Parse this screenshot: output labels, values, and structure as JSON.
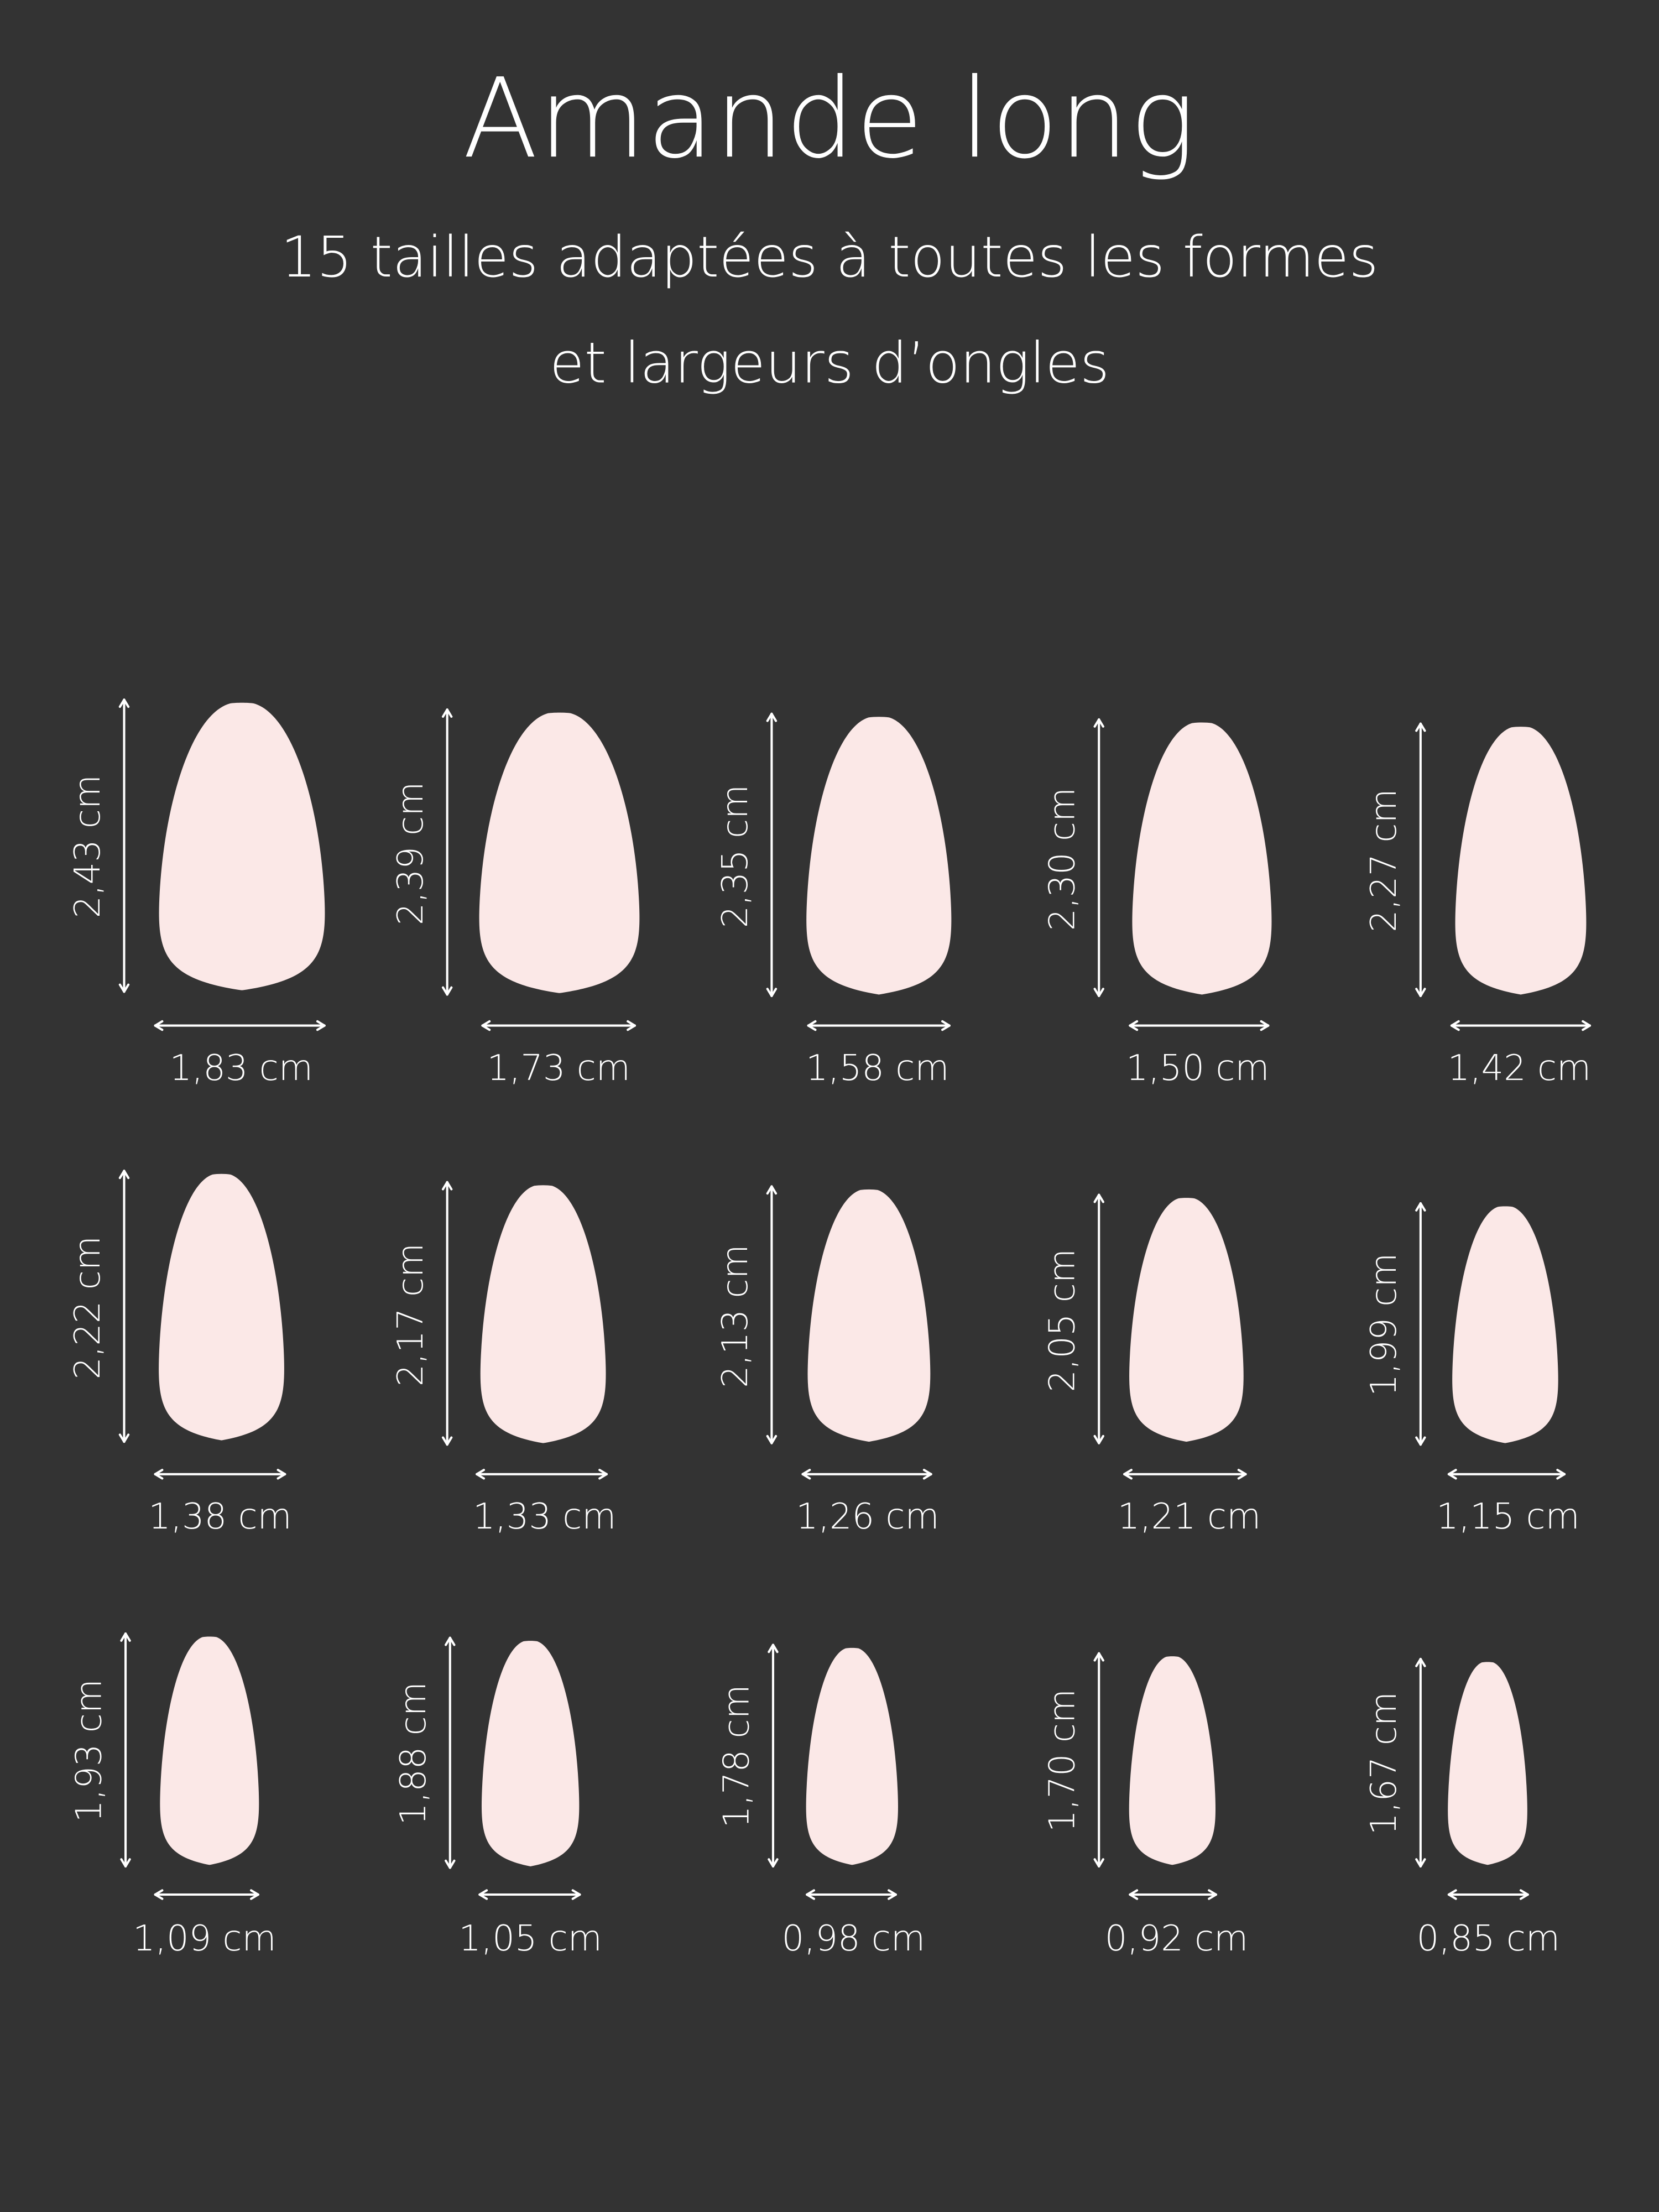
{
  "title": "Amande long",
  "subtitle": [
    "15 tailles adaptées à toutes les formes",
    "et largeurs d’ongles"
  ],
  "colors": {
    "background": "#333333",
    "nail": "#fbe8e7",
    "text": "#ffffff"
  },
  "nails": [
    {
      "length": "2,43 cm",
      "width": "1,83 cm"
    },
    {
      "length": "2,39 cm",
      "width": "1,73 cm"
    },
    {
      "length": "2,35 cm",
      "width": "1,58 cm"
    },
    {
      "length": "2,30 cm",
      "width": "1,50 cm"
    },
    {
      "length": "2,27 cm",
      "width": "1,42 cm"
    },
    {
      "length": "2,22 cm",
      "width": "1,38 cm"
    },
    {
      "length": "2,17 cm",
      "width": "1,33 cm"
    },
    {
      "length": "2,13 cm",
      "width": "1,26 cm"
    },
    {
      "length": "2,05 cm",
      "width": "1,21 cm"
    },
    {
      "length": "1,99 cm",
      "width": "1,15 cm"
    },
    {
      "length": "1,93 cm",
      "width": "1,09 cm"
    },
    {
      "length": "1,88 cm",
      "width": "1,05 cm"
    },
    {
      "length": "1,78 cm",
      "width": "0,98 cm"
    },
    {
      "length": "1,70 cm",
      "width": "0,92 cm"
    },
    {
      "length": "1,67 cm",
      "width": "0,85 cm"
    }
  ]
}
